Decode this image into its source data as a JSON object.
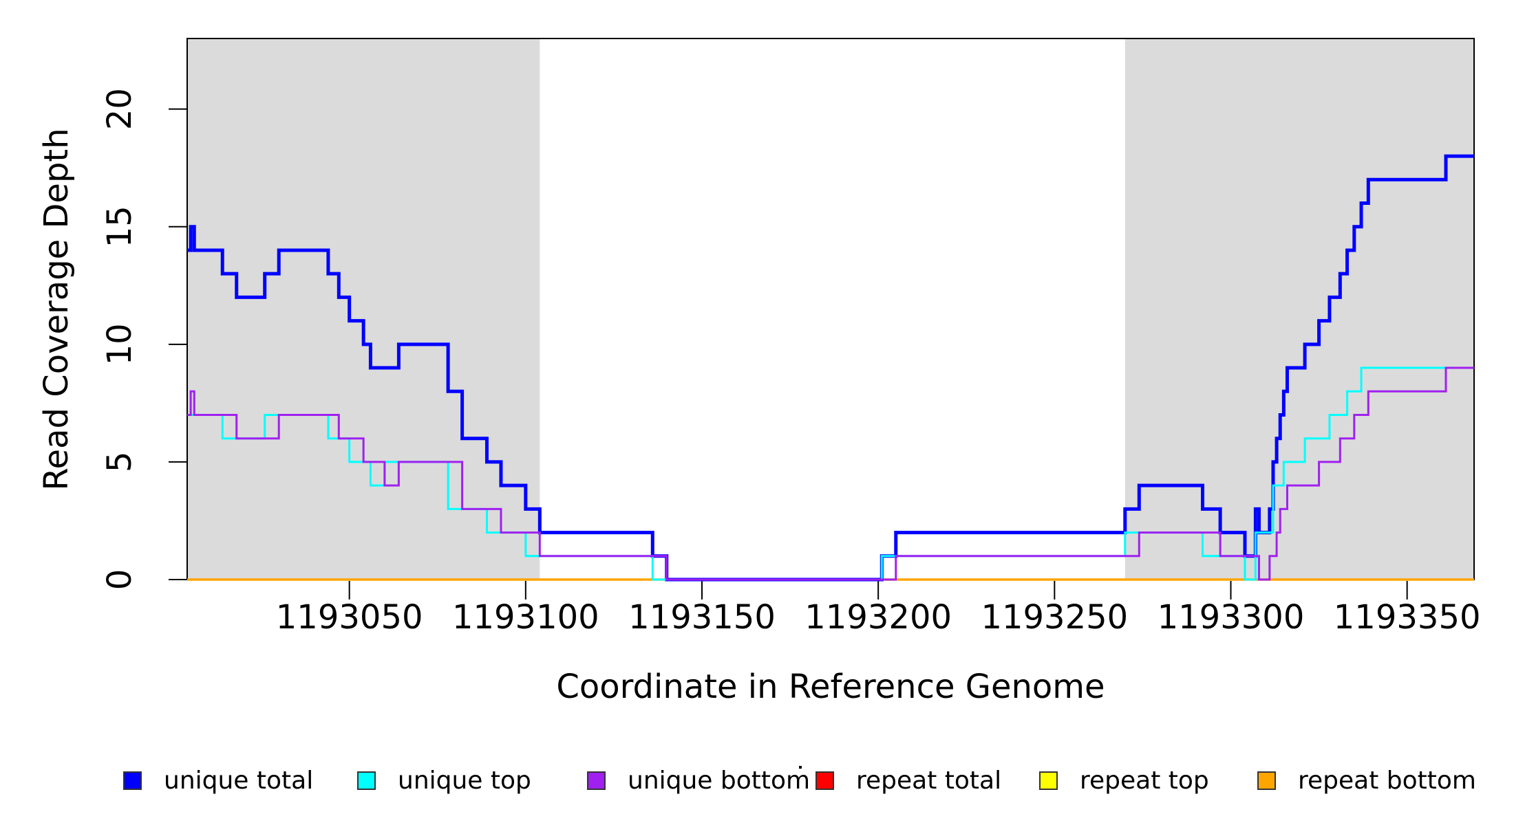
{
  "chart_data": {
    "type": "line",
    "subtype": "step",
    "title": "",
    "xlabel": "Coordinate in Reference Genome",
    "ylabel": "Read Coverage Depth",
    "xlim": [
      1193004,
      1193369
    ],
    "ylim": [
      0,
      23
    ],
    "x_ticks": [
      1193050,
      1193100,
      1193150,
      1193200,
      1193250,
      1193300,
      1193350
    ],
    "y_ticks": [
      0,
      5,
      10,
      15,
      20
    ],
    "grid": false,
    "colors": {
      "shading": "#DBDBDB",
      "axis": "#000000",
      "background": "#FFFFFF"
    },
    "shaded_regions": [
      {
        "from": 1193004,
        "to": 1193104
      },
      {
        "from": 1193270,
        "to": 1193369
      }
    ],
    "series": [
      {
        "name": "repeat total",
        "color": "#FF0000",
        "width": 3,
        "breakpoints": [
          [
            1193004,
            0
          ]
        ]
      },
      {
        "name": "repeat top",
        "color": "#FFFF00",
        "width": 3,
        "breakpoints": [
          [
            1193004,
            0
          ]
        ]
      },
      {
        "name": "repeat bottom",
        "color": "#FFA500",
        "width": 3.5,
        "breakpoints": [
          [
            1193004,
            0
          ]
        ]
      },
      {
        "name": "unique total",
        "color": "#0000FF",
        "width": 5,
        "breakpoints": [
          [
            1193004,
            14
          ],
          [
            1193005,
            15
          ],
          [
            1193006,
            14
          ],
          [
            1193014,
            13
          ],
          [
            1193018,
            12
          ],
          [
            1193026,
            13
          ],
          [
            1193030,
            14
          ],
          [
            1193044,
            13
          ],
          [
            1193047,
            12
          ],
          [
            1193050,
            11
          ],
          [
            1193054,
            10
          ],
          [
            1193056,
            9
          ],
          [
            1193064,
            10
          ],
          [
            1193078,
            8
          ],
          [
            1193082,
            6
          ],
          [
            1193089,
            5
          ],
          [
            1193093,
            4
          ],
          [
            1193100,
            3
          ],
          [
            1193104,
            2
          ],
          [
            1193136,
            1
          ],
          [
            1193140,
            0
          ],
          [
            1193201,
            1
          ],
          [
            1193205,
            2
          ],
          [
            1193270,
            3
          ],
          [
            1193274,
            4
          ],
          [
            1193292,
            3
          ],
          [
            1193297,
            2
          ],
          [
            1193304,
            1
          ],
          [
            1193307,
            3
          ],
          [
            1193308,
            2
          ],
          [
            1193311,
            3
          ],
          [
            1193312,
            5
          ],
          [
            1193313,
            6
          ],
          [
            1193314,
            7
          ],
          [
            1193315,
            8
          ],
          [
            1193316,
            9
          ],
          [
            1193321,
            10
          ],
          [
            1193325,
            11
          ],
          [
            1193328,
            12
          ],
          [
            1193331,
            13
          ],
          [
            1193333,
            14
          ],
          [
            1193335,
            15
          ],
          [
            1193337,
            16
          ],
          [
            1193339,
            17
          ],
          [
            1193361,
            18
          ]
        ]
      },
      {
        "name": "unique top",
        "color": "#00FFFF",
        "width": 3,
        "breakpoints": [
          [
            1193004,
            7
          ],
          [
            1193014,
            6
          ],
          [
            1193026,
            7
          ],
          [
            1193044,
            6
          ],
          [
            1193050,
            5
          ],
          [
            1193056,
            4
          ],
          [
            1193060,
            5
          ],
          [
            1193078,
            3
          ],
          [
            1193089,
            2
          ],
          [
            1193100,
            1
          ],
          [
            1193136,
            0
          ],
          [
            1193201,
            1
          ],
          [
            1193270,
            2
          ],
          [
            1193292,
            1
          ],
          [
            1193304,
            0
          ],
          [
            1193307,
            2
          ],
          [
            1193312,
            4
          ],
          [
            1193315,
            5
          ],
          [
            1193321,
            6
          ],
          [
            1193328,
            7
          ],
          [
            1193333,
            8
          ],
          [
            1193337,
            9
          ]
        ]
      },
      {
        "name": "unique bottom",
        "color": "#A020F0",
        "width": 3,
        "breakpoints": [
          [
            1193004,
            7
          ],
          [
            1193005,
            8
          ],
          [
            1193006,
            7
          ],
          [
            1193018,
            6
          ],
          [
            1193030,
            7
          ],
          [
            1193047,
            6
          ],
          [
            1193054,
            5
          ],
          [
            1193060,
            4
          ],
          [
            1193064,
            5
          ],
          [
            1193082,
            3
          ],
          [
            1193093,
            2
          ],
          [
            1193104,
            1
          ],
          [
            1193140,
            0
          ],
          [
            1193205,
            1
          ],
          [
            1193274,
            2
          ],
          [
            1193297,
            1
          ],
          [
            1193308,
            0
          ],
          [
            1193311,
            1
          ],
          [
            1193313,
            2
          ],
          [
            1193314,
            3
          ],
          [
            1193316,
            4
          ],
          [
            1193325,
            5
          ],
          [
            1193331,
            6
          ],
          [
            1193335,
            7
          ],
          [
            1193339,
            8
          ],
          [
            1193361,
            9
          ]
        ]
      }
    ],
    "legend": {
      "position": "bottom",
      "stray_dot": true,
      "entries": [
        {
          "label": "unique total",
          "color": "#0000FF"
        },
        {
          "label": "unique top",
          "color": "#00FFFF"
        },
        {
          "label": "unique bottom",
          "color": "#A020F0"
        },
        {
          "label": "repeat total",
          "color": "#FF0000"
        },
        {
          "label": "repeat top",
          "color": "#FFFF00"
        },
        {
          "label": "repeat bottom",
          "color": "#FFA500"
        }
      ]
    }
  }
}
